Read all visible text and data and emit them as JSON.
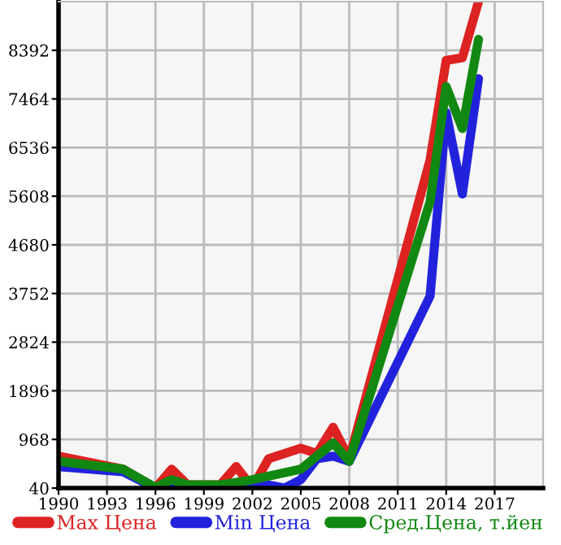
{
  "chart_data": {
    "type": "line",
    "xlim": [
      1990,
      2020
    ],
    "ylim": [
      40,
      9320
    ],
    "xticks": [
      1990,
      1993,
      1996,
      1999,
      2002,
      2005,
      2008,
      2011,
      2014,
      2017
    ],
    "yticks": [
      40,
      968,
      1896,
      2824,
      3752,
      4680,
      5608,
      6536,
      7464,
      8392
    ],
    "grid": true,
    "legend": "bottom",
    "marker": "none",
    "line_style": "solid",
    "series": [
      {
        "name": "Max Цена",
        "color": "#dd2222",
        "x": [
          1990,
          1994,
          1996,
          1997,
          1998,
          2000,
          2001,
          2002,
          2003,
          2005,
          2006,
          2007,
          2008,
          2013,
          2014,
          2015,
          2016
        ],
        "values": [
          650,
          400,
          40,
          400,
          100,
          100,
          450,
          50,
          600,
          800,
          700,
          1200,
          600,
          6300,
          8200,
          8250,
          9320
        ]
      },
      {
        "name": "Min Цена",
        "color": "#2222dd",
        "x": [
          1990,
          1994,
          1996,
          1997,
          1998,
          2000,
          2002,
          2003,
          2004,
          2005,
          2006,
          2007,
          2008,
          2013,
          2014,
          2015,
          2016
        ],
        "values": [
          450,
          350,
          40,
          100,
          40,
          40,
          50,
          100,
          40,
          200,
          600,
          650,
          550,
          3700,
          7200,
          5650,
          7850
        ]
      },
      {
        "name": "Сред.Цена, т.йен",
        "color": "#118811",
        "x": [
          1990,
          1994,
          1996,
          1997,
          1998,
          2000,
          2002,
          2005,
          2007,
          2008,
          2013,
          2014,
          2015,
          2016
        ],
        "values": [
          550,
          400,
          50,
          200,
          100,
          100,
          200,
          400,
          900,
          550,
          5500,
          7700,
          6900,
          8600
        ]
      }
    ]
  }
}
